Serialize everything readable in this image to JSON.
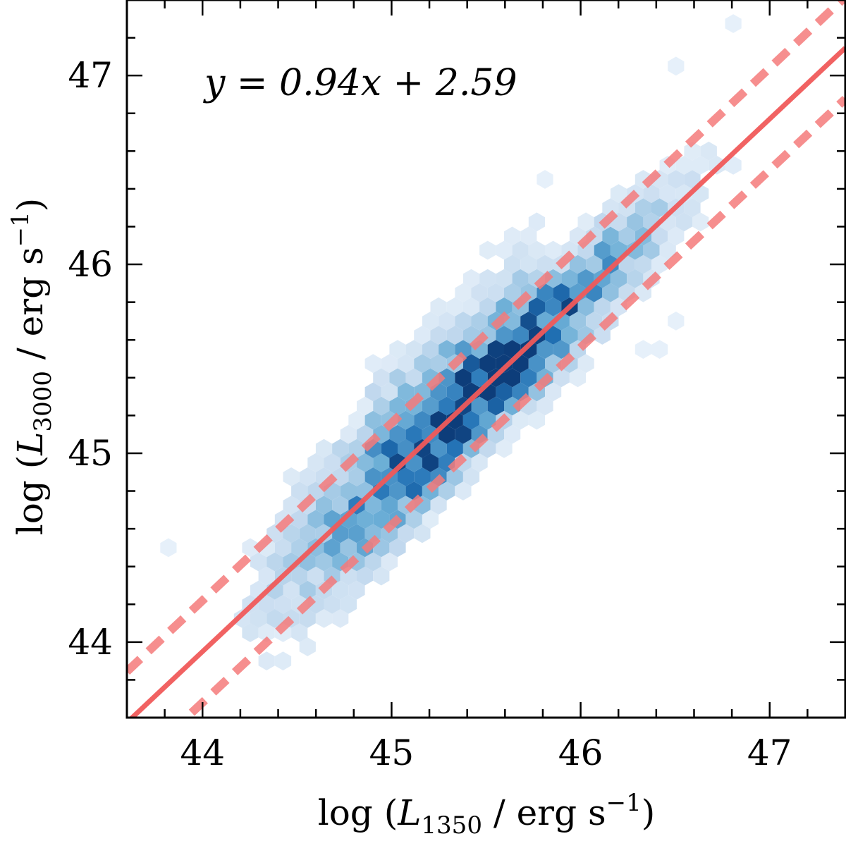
{
  "chart_data": {
    "type": "hexbin",
    "colormap": "Blues",
    "xlabel": {
      "prefix": "log  (",
      "var": "L",
      "sub": "1350",
      "mid": " / erg s",
      "sup": "−1",
      "suffix": ")"
    },
    "ylabel": {
      "prefix": "log  (",
      "var": "L",
      "sub": "3000",
      "mid": " / erg s",
      "sup": "−1",
      "suffix": ")"
    },
    "xlim": [
      43.6,
      47.4
    ],
    "ylim": [
      43.6,
      47.4
    ],
    "xticks": [
      44,
      45,
      46,
      47
    ],
    "yticks": [
      44,
      45,
      46,
      47
    ],
    "xtick_labels": [
      "44",
      "45",
      "46",
      "47"
    ],
    "ytick_labels": [
      "44",
      "45",
      "46",
      "47"
    ],
    "minor_tick_step": 0.2,
    "annotation": "y = 0.94x + 2.59",
    "fit": {
      "slope": 0.94,
      "intercept": 2.59,
      "color": "#f05a5a"
    },
    "scatter_band": {
      "offset": 0.27,
      "style": "dashed",
      "color": "#f47a7a"
    },
    "density_model": {
      "x_center": 45.45,
      "x_sigma": 0.55,
      "y_scatter": 0.18,
      "hex_size": 0.05
    }
  }
}
